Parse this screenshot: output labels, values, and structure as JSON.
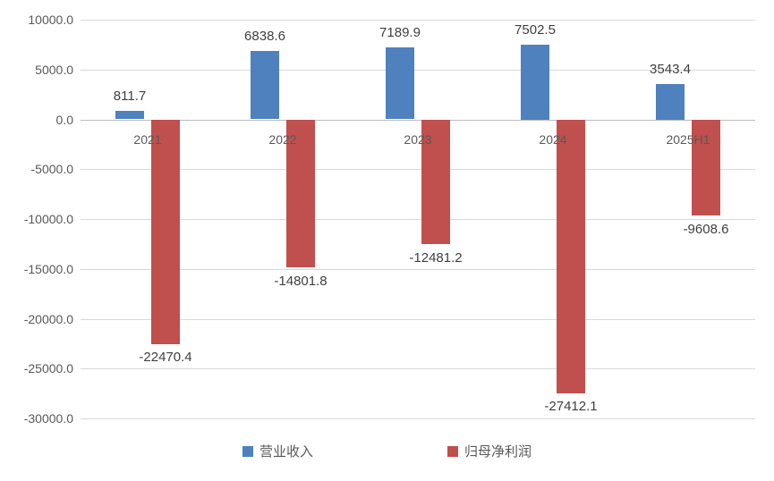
{
  "chart_data": {
    "type": "bar",
    "title": "",
    "xlabel": "",
    "ylabel": "",
    "categories": [
      "2021",
      "2022",
      "2023",
      "2024",
      "2025H1"
    ],
    "series": [
      {
        "name": "营业收入",
        "color": "#4e81bd",
        "values": [
          811.7,
          6838.6,
          7189.9,
          7502.5,
          3543.4
        ],
        "labels": [
          "811.7",
          "6838.6",
          "7189.9",
          "7502.5",
          "3543.4"
        ]
      },
      {
        "name": "归母净利润",
        "color": "#c0504d",
        "values": [
          -22470.4,
          -14801.8,
          -12481.2,
          -27412.1,
          -9608.6
        ],
        "labels": [
          "-22470.4",
          "-14801.8",
          "-12481.2",
          "-27412.1",
          "-9608.6"
        ]
      }
    ],
    "ylim": [
      -30000,
      10000
    ],
    "y_ticks": [
      10000,
      5000,
      0,
      -5000,
      -10000,
      -15000,
      -20000,
      -25000,
      -30000
    ],
    "y_tick_labels": [
      "10000.0",
      "5000.0",
      "0.0",
      "-5000.0",
      "-10000.0",
      "-15000.0",
      "-20000.0",
      "-25000.0",
      "-30000.0"
    ],
    "grid": true,
    "legend_position": "bottom"
  },
  "colors": {
    "background": "#ffffff",
    "grid": "#d9d9d9",
    "zero_axis": "#bdbdbd",
    "data_label": "#3f3f3f",
    "tick_label": "#595959",
    "series_blue": "#4e81bd",
    "series_red": "#c0504d"
  }
}
